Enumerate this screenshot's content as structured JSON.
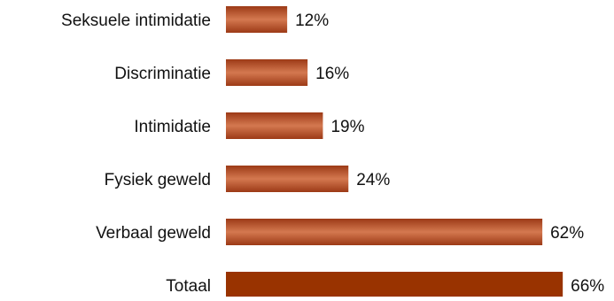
{
  "chart_data": {
    "type": "bar",
    "orientation": "horizontal",
    "categories": [
      "Seksuele intimidatie",
      "Discriminatie",
      "Intimidatie",
      "Fysiek geweld",
      "Verbaal geweld",
      "Totaal"
    ],
    "values": [
      12,
      16,
      19,
      24,
      62,
      66
    ],
    "value_labels": [
      "12%",
      "16%",
      "19%",
      "24%",
      "62%",
      "66%"
    ],
    "unit": "%",
    "xlim": [
      0,
      100
    ],
    "grid": false,
    "legend": "none",
    "title": "",
    "xlabel": "",
    "ylabel": ""
  },
  "colors": {
    "bar": "#c0552e",
    "bar_gradient_light": "#d47850",
    "bar_gradient_dark": "#9c3a16",
    "total_bar": "#993300",
    "text": "#111111"
  }
}
